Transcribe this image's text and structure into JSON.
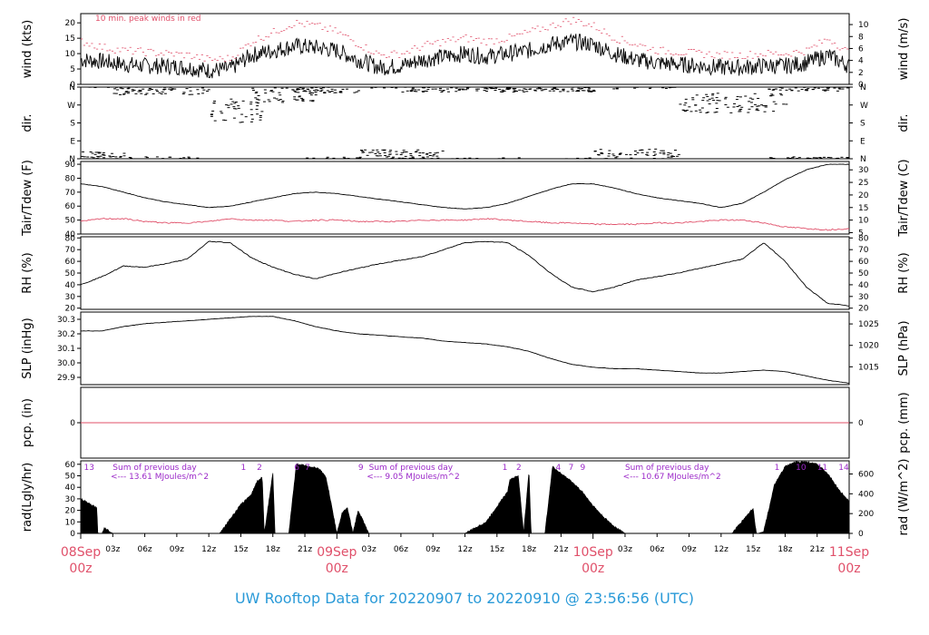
{
  "title": "UW Rooftop Data for 20220907  to  20220910 @ 23:56:56  (UTC)",
  "colors": {
    "line": "#000000",
    "accent": "#e0506a",
    "title": "#2a9ad8",
    "radnote": "#9b28c8"
  },
  "x_axis": {
    "hours_total": 72,
    "minor_ticks": [
      {
        "h": 3,
        "label": "03z"
      },
      {
        "h": 6,
        "label": "06z"
      },
      {
        "h": 9,
        "label": "09z"
      },
      {
        "h": 12,
        "label": "12z"
      },
      {
        "h": 15,
        "label": "15z"
      },
      {
        "h": 18,
        "label": "18z"
      },
      {
        "h": 21,
        "label": "21z"
      },
      {
        "h": 27,
        "label": "03z"
      },
      {
        "h": 30,
        "label": "06z"
      },
      {
        "h": 33,
        "label": "09z"
      },
      {
        "h": 36,
        "label": "12z"
      },
      {
        "h": 39,
        "label": "15z"
      },
      {
        "h": 42,
        "label": "18z"
      },
      {
        "h": 45,
        "label": "21z"
      },
      {
        "h": 51,
        "label": "03z"
      },
      {
        "h": 54,
        "label": "06z"
      },
      {
        "h": 57,
        "label": "09z"
      },
      {
        "h": 60,
        "label": "12z"
      },
      {
        "h": 63,
        "label": "15z"
      },
      {
        "h": 66,
        "label": "18z"
      },
      {
        "h": 69,
        "label": "21z"
      }
    ],
    "date_ticks": [
      {
        "h": 0,
        "date": "08Sep",
        "hour": "00z"
      },
      {
        "h": 24,
        "date": "09Sep",
        "hour": "00z"
      },
      {
        "h": 48,
        "date": "10Sep",
        "hour": "00z"
      },
      {
        "h": 72,
        "date": "11Sep",
        "hour": "00z"
      }
    ]
  },
  "chart_data": [
    {
      "type": "line",
      "id": "wind",
      "ylabel_left": "wind (kts)",
      "ylabel_right": "wind (m/s)",
      "ylim": [
        0,
        23
      ],
      "left_ticks": [
        0,
        5,
        10,
        15,
        20
      ],
      "right_ticks": [
        0,
        2,
        4,
        6,
        8,
        10
      ],
      "right_scale": 0.5144,
      "annotation": "10 min. peak winds in red",
      "series": [
        {
          "role": "speed",
          "x": [
            0,
            2,
            4,
            6,
            8,
            10,
            12,
            14,
            16,
            18,
            20,
            22,
            24,
            26,
            28,
            30,
            32,
            34,
            36,
            38,
            40,
            42,
            44,
            46,
            48,
            50,
            52,
            54,
            56,
            58,
            60,
            62,
            64,
            66,
            68,
            70,
            72
          ],
          "y": [
            8,
            7.5,
            6.5,
            6,
            6,
            5.5,
            4.5,
            5,
            9.5,
            11,
            12.5,
            12,
            11,
            8,
            5.5,
            6,
            8,
            9,
            10,
            9,
            10,
            11,
            13,
            14,
            13,
            10,
            8,
            7,
            6.5,
            6,
            5.5,
            5.5,
            6,
            6,
            7,
            9.5,
            6
          ]
        },
        {
          "role": "peak",
          "x": [
            0,
            2,
            4,
            6,
            8,
            10,
            12,
            14,
            16,
            18,
            20,
            22,
            24,
            26,
            28,
            30,
            32,
            34,
            36,
            38,
            40,
            42,
            44,
            46,
            48,
            50,
            52,
            54,
            56,
            58,
            60,
            62,
            64,
            66,
            68,
            70,
            72
          ],
          "y": [
            14,
            12,
            11,
            10.5,
            10,
            9.5,
            8,
            8.5,
            14,
            17,
            20,
            19,
            17,
            13,
            9.5,
            10,
            12.5,
            14,
            15,
            14,
            15,
            17,
            19,
            21,
            19,
            15,
            13,
            11,
            10.5,
            10,
            9.5,
            9.5,
            10,
            10,
            11,
            15,
            10
          ]
        }
      ]
    },
    {
      "type": "scatter",
      "id": "dir",
      "ylabel_left": "dir.",
      "ylabel_right": "dir.",
      "ylim": [
        0,
        360
      ],
      "ticks": [
        {
          "v": 0,
          "label": "N"
        },
        {
          "v": 90,
          "label": "E"
        },
        {
          "v": 180,
          "label": "S"
        },
        {
          "v": 270,
          "label": "W"
        },
        {
          "v": 360,
          "label": "N"
        }
      ],
      "bands": [
        {
          "h0": 0,
          "h1": 4,
          "dir": 15,
          "spread": 20
        },
        {
          "h0": 3,
          "h1": 12,
          "dir": 345,
          "spread": 25
        },
        {
          "h0": 12,
          "h1": 17,
          "dir": 240,
          "spread": 60
        },
        {
          "h0": 16,
          "h1": 22,
          "dir": 320,
          "spread": 40
        },
        {
          "h0": 20,
          "h1": 26,
          "dir": 350,
          "spread": 20
        },
        {
          "h0": 26,
          "h1": 34,
          "dir": 20,
          "spread": 25
        },
        {
          "h0": 30,
          "h1": 48,
          "dir": 350,
          "spread": 15
        },
        {
          "h0": 48,
          "h1": 56,
          "dir": 20,
          "spread": 30
        },
        {
          "h0": 56,
          "h1": 66,
          "dir": 280,
          "spread": 50
        },
        {
          "h0": 64,
          "h1": 72,
          "dir": 355,
          "spread": 15
        }
      ]
    },
    {
      "type": "line",
      "id": "temp",
      "ylabel_left": "Tair/Tdew (F)",
      "ylabel_right": "Tair/Tdew (C)",
      "ylim": [
        40,
        92
      ],
      "left_ticks": [
        40,
        50,
        60,
        70,
        80,
        90
      ],
      "right_ticks": [
        5,
        10,
        15,
        20,
        25,
        30
      ],
      "series": [
        {
          "role": "tair",
          "x": [
            0,
            2,
            4,
            6,
            8,
            10,
            12,
            14,
            16,
            18,
            20,
            22,
            24,
            26,
            28,
            30,
            32,
            34,
            36,
            38,
            40,
            42,
            44,
            46,
            48,
            50,
            52,
            54,
            56,
            58,
            60,
            62,
            64,
            66,
            68,
            70,
            72
          ],
          "y": [
            76,
            74,
            70,
            66,
            63,
            61,
            59,
            60,
            63,
            66,
            69,
            70,
            69,
            67,
            65,
            63,
            61,
            59,
            58,
            59,
            62,
            67,
            72,
            76,
            76,
            73,
            69,
            66,
            64,
            62,
            59,
            62,
            70,
            79,
            86,
            90,
            90
          ]
        },
        {
          "role": "tdew",
          "x": [
            0,
            2,
            4,
            6,
            8,
            10,
            12,
            14,
            16,
            18,
            20,
            22,
            24,
            26,
            28,
            30,
            32,
            34,
            36,
            38,
            40,
            42,
            44,
            46,
            48,
            50,
            52,
            54,
            56,
            58,
            60,
            62,
            64,
            66,
            68,
            70,
            72
          ],
          "y": [
            49,
            51,
            51,
            49,
            48,
            48,
            49,
            51,
            50,
            50,
            49,
            50,
            50,
            49,
            49,
            49,
            50,
            50,
            50,
            51,
            50,
            49,
            48,
            48,
            47,
            47,
            47,
            48,
            48,
            49,
            50,
            50,
            48,
            45,
            44,
            43,
            44
          ]
        }
      ]
    },
    {
      "type": "line",
      "id": "rh",
      "ylabel_left": "RH (%)",
      "ylabel_right": "RH (%)",
      "ylim": [
        19,
        81
      ],
      "left_ticks": [
        20,
        30,
        40,
        50,
        60,
        70,
        80
      ],
      "right_ticks": [
        20,
        30,
        40,
        50,
        60,
        70,
        80
      ],
      "series": [
        {
          "role": "rh",
          "x": [
            0,
            2,
            4,
            6,
            8,
            10,
            12,
            14,
            16,
            18,
            20,
            22,
            24,
            26,
            28,
            30,
            32,
            34,
            36,
            38,
            40,
            42,
            44,
            46,
            48,
            50,
            52,
            54,
            56,
            58,
            60,
            62,
            64,
            66,
            68,
            70,
            72
          ],
          "y": [
            40,
            47,
            56,
            55,
            58,
            62,
            77,
            76,
            63,
            55,
            49,
            45,
            50,
            54,
            58,
            61,
            64,
            70,
            76,
            77,
            76,
            65,
            50,
            38,
            34,
            38,
            44,
            47,
            50,
            54,
            58,
            62,
            76,
            60,
            38,
            24,
            22
          ]
        }
      ]
    },
    {
      "type": "line",
      "id": "slp",
      "ylabel_left": "SLP (inHg)",
      "ylabel_right": "SLP (hPa)",
      "ylim": [
        29.85,
        30.35
      ],
      "left_ticks": [
        29.9,
        30.0,
        30.1,
        30.2,
        30.3
      ],
      "right_ticks": [
        1015,
        1020,
        1025
      ],
      "right_scale": 33.8639,
      "series": [
        {
          "role": "slp",
          "x": [
            0,
            2,
            4,
            6,
            8,
            10,
            12,
            14,
            16,
            18,
            20,
            22,
            24,
            26,
            28,
            30,
            32,
            34,
            36,
            38,
            40,
            42,
            44,
            46,
            48,
            50,
            52,
            54,
            56,
            58,
            60,
            62,
            64,
            66,
            68,
            70,
            72
          ],
          "y": [
            30.22,
            30.22,
            30.25,
            30.27,
            30.28,
            30.29,
            30.3,
            30.31,
            30.32,
            30.32,
            30.29,
            30.25,
            30.22,
            30.2,
            30.19,
            30.18,
            30.17,
            30.15,
            30.14,
            30.13,
            30.11,
            30.08,
            30.03,
            29.99,
            29.97,
            29.96,
            29.96,
            29.95,
            29.94,
            29.93,
            29.93,
            29.94,
            29.95,
            29.94,
            29.91,
            29.88,
            29.86
          ]
        }
      ]
    },
    {
      "type": "line",
      "id": "pcp",
      "ylabel_left": "pcp. (in)",
      "ylabel_right": "pcp. (mm)",
      "ylim": [
        -1,
        1
      ],
      "left_ticks": [
        0
      ],
      "right_ticks": [
        0
      ],
      "series": [
        {
          "role": "pcp",
          "x": [
            0,
            72
          ],
          "y": [
            0,
            0
          ]
        }
      ]
    },
    {
      "type": "area",
      "id": "rad",
      "ylabel_left": "rad(Lgly/hr)",
      "ylabel_right": "rad (W/m^2)",
      "ylim": [
        0,
        63
      ],
      "left_ticks": [
        0,
        10,
        20,
        30,
        40,
        50,
        60
      ],
      "right_ticks": [
        0,
        200,
        400,
        600
      ],
      "right_scale": 11.63,
      "series": [
        {
          "role": "rad",
          "x": [
            0,
            1.5,
            1.6,
            2,
            2.2,
            3,
            4,
            13,
            15,
            16,
            16.5,
            17,
            17.2,
            18,
            18.2,
            19.5,
            20.2,
            20.4,
            21,
            22,
            22.5,
            23,
            24,
            24.5,
            25,
            25.5,
            26,
            26.5,
            27,
            28,
            29,
            36,
            38,
            39.5,
            40,
            40.2,
            41,
            41.5,
            42,
            42.2,
            43.5,
            44.2,
            45,
            46,
            47,
            48,
            49,
            50,
            51,
            61,
            63,
            63.3,
            63.5,
            64,
            65,
            66,
            67,
            68,
            69,
            70,
            71,
            72
          ],
          "y": [
            30,
            22,
            0,
            0,
            5,
            0,
            0,
            0,
            25,
            34,
            45,
            49,
            0,
            52,
            0,
            0,
            60,
            60,
            59,
            57,
            55,
            48,
            0,
            18,
            22,
            0,
            20,
            10,
            0,
            0,
            0,
            0,
            10,
            30,
            36,
            47,
            50,
            0,
            55,
            0,
            0,
            58,
            52,
            45,
            36,
            24,
            14,
            6,
            0,
            0,
            22,
            0,
            0,
            2,
            42,
            58,
            62,
            62,
            60,
            52,
            38,
            28
          ]
        }
      ],
      "labels": [
        {
          "h": 0.3,
          "text": "13"
        },
        {
          "h": 3,
          "text": "Sum of previous day",
          "row": 0
        },
        {
          "h": 2.8,
          "text": "<--- 13.61 MJoules/m^2",
          "row": 1
        },
        {
          "h": 15,
          "text": "1",
          "row": 0
        },
        {
          "h": 16.5,
          "text": "2",
          "row": 0
        },
        {
          "h": 20,
          "text": "6",
          "row": 0
        },
        {
          "h": 21,
          "text": "7",
          "row": 0
        },
        {
          "h": 26,
          "text": "9",
          "row": 0
        },
        {
          "h": 27,
          "text": "Sum of previous day",
          "row": 0
        },
        {
          "h": 26.8,
          "text": "<--- 9.05 MJoules/m^2",
          "row": 1
        },
        {
          "h": 39.5,
          "text": "1",
          "row": 0
        },
        {
          "h": 40.8,
          "text": "2",
          "row": 0
        },
        {
          "h": 44.5,
          "text": "4",
          "row": 0
        },
        {
          "h": 45.7,
          "text": "7",
          "row": 0
        },
        {
          "h": 46.8,
          "text": "9",
          "row": 0
        },
        {
          "h": 51,
          "text": "Sum of previous day",
          "row": 0
        },
        {
          "h": 50.8,
          "text": "<--- 10.67 MJoules/m^2",
          "row": 1
        },
        {
          "h": 65,
          "text": "1",
          "row": 0
        },
        {
          "h": 67,
          "text": "10",
          "row": 0
        },
        {
          "h": 69,
          "text": "11",
          "row": 0
        },
        {
          "h": 71,
          "text": "14",
          "row": 0
        }
      ]
    }
  ]
}
